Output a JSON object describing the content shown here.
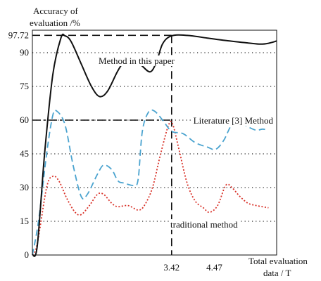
{
  "chart_data": {
    "type": "line",
    "title": "",
    "ylabel_lines": [
      "Accuracy of",
      "evaluation /%"
    ],
    "xlabel_lines": [
      "Total evaluation",
      "data / T"
    ],
    "ylim": [
      0,
      100
    ],
    "xlim": [
      0,
      6
    ],
    "y_ticks": [
      0,
      15,
      30,
      45,
      60,
      75,
      90,
      97.72
    ],
    "y_tick_labels": [
      "0",
      "15",
      "30",
      "45",
      "60",
      "75",
      "90",
      "97.72"
    ],
    "x_ticks": [
      3.42,
      4.47
    ],
    "x_tick_labels": [
      "3.42",
      "4.47"
    ],
    "grid": "dotted horizontal lines at 15, 30, 45, 60, 75, 90",
    "colors": {
      "method": "#111111",
      "literature": "#4aa3cf",
      "traditional": "#d9332a",
      "grid": "#222222"
    },
    "reference_lines": [
      {
        "kind": "horizontal",
        "y": 97.72,
        "style": "dashed"
      },
      {
        "kind": "horizontal",
        "y": 60,
        "style": "dashdot"
      },
      {
        "kind": "vertical",
        "x": 3.42,
        "style": "dashed"
      }
    ],
    "series": [
      {
        "name": "Method in this paper",
        "label_text": "Method in this paper",
        "style": "solid",
        "points": [
          [
            0.0,
            0
          ],
          [
            0.12,
            4
          ],
          [
            0.3,
            45
          ],
          [
            0.5,
            80
          ],
          [
            0.7,
            96.5
          ],
          [
            0.8,
            97.5
          ],
          [
            0.95,
            95
          ],
          [
            1.2,
            85
          ],
          [
            1.45,
            75
          ],
          [
            1.65,
            70.5
          ],
          [
            1.85,
            73
          ],
          [
            2.1,
            82
          ],
          [
            2.3,
            87
          ],
          [
            2.5,
            87.5
          ],
          [
            2.7,
            84
          ],
          [
            2.9,
            81.5
          ],
          [
            3.05,
            86
          ],
          [
            3.2,
            94
          ],
          [
            3.42,
            97.5
          ],
          [
            3.8,
            97.7
          ],
          [
            4.3,
            96.5
          ],
          [
            4.8,
            95.3
          ],
          [
            5.3,
            94.3
          ],
          [
            5.6,
            93.8
          ],
          [
            5.8,
            94.2
          ],
          [
            6.0,
            95.2
          ]
        ]
      },
      {
        "name": "Literature [3] Method",
        "label_text": "Literature [3] Method",
        "style": "dashed",
        "points": [
          [
            0.0,
            0
          ],
          [
            0.15,
            15
          ],
          [
            0.35,
            45
          ],
          [
            0.5,
            62
          ],
          [
            0.6,
            64
          ],
          [
            0.8,
            58
          ],
          [
            1.0,
            40
          ],
          [
            1.2,
            26
          ],
          [
            1.35,
            27
          ],
          [
            1.6,
            36
          ],
          [
            1.75,
            40
          ],
          [
            1.95,
            38
          ],
          [
            2.1,
            33
          ],
          [
            2.25,
            32
          ],
          [
            2.5,
            31
          ],
          [
            2.6,
            34
          ],
          [
            2.7,
            55
          ],
          [
            2.85,
            63.5
          ],
          [
            3.0,
            64
          ],
          [
            3.2,
            60
          ],
          [
            3.42,
            55
          ],
          [
            3.7,
            54
          ],
          [
            4.0,
            50
          ],
          [
            4.3,
            48
          ],
          [
            4.5,
            47
          ],
          [
            4.7,
            51
          ],
          [
            4.9,
            58
          ],
          [
            5.1,
            59
          ],
          [
            5.3,
            57
          ],
          [
            5.5,
            55.5
          ],
          [
            5.65,
            56
          ],
          [
            5.8,
            55.5
          ]
        ]
      },
      {
        "name": "traditional method",
        "label_text": "traditional method",
        "style": "dotted",
        "points": [
          [
            0.0,
            0
          ],
          [
            0.12,
            5
          ],
          [
            0.35,
            30
          ],
          [
            0.5,
            35
          ],
          [
            0.65,
            33
          ],
          [
            0.85,
            25
          ],
          [
            1.05,
            19
          ],
          [
            1.2,
            18
          ],
          [
            1.4,
            22
          ],
          [
            1.6,
            27
          ],
          [
            1.75,
            27
          ],
          [
            1.95,
            23
          ],
          [
            2.1,
            21.5
          ],
          [
            2.35,
            22
          ],
          [
            2.6,
            20
          ],
          [
            2.75,
            22
          ],
          [
            2.95,
            30
          ],
          [
            3.15,
            45
          ],
          [
            3.35,
            58
          ],
          [
            3.45,
            58
          ],
          [
            3.6,
            47
          ],
          [
            3.8,
            32
          ],
          [
            4.0,
            24
          ],
          [
            4.2,
            21
          ],
          [
            4.35,
            19
          ],
          [
            4.55,
            22
          ],
          [
            4.75,
            31
          ],
          [
            4.9,
            30
          ],
          [
            5.1,
            26
          ],
          [
            5.3,
            23
          ],
          [
            5.5,
            22
          ],
          [
            5.8,
            21
          ]
        ]
      }
    ]
  }
}
